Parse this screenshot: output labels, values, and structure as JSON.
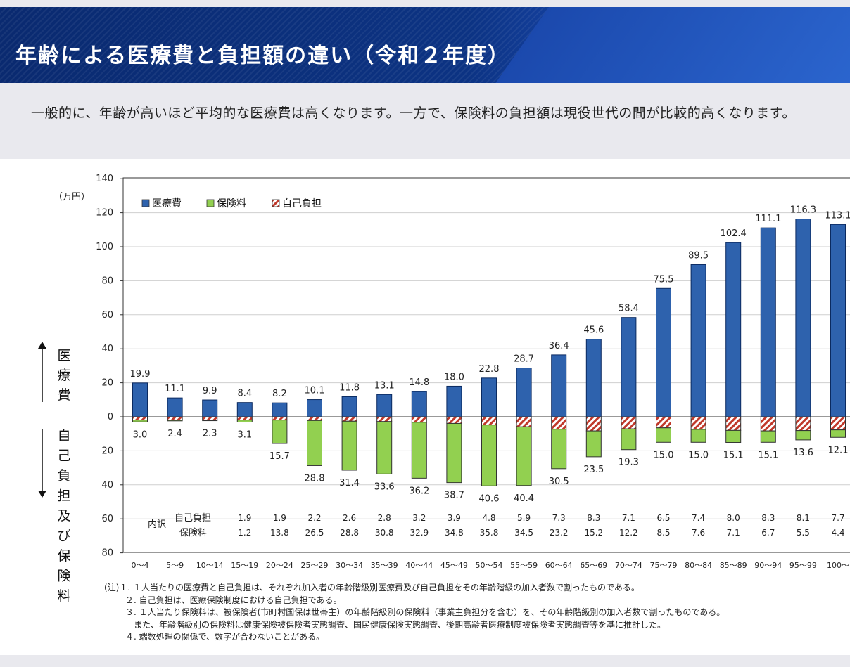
{
  "header": {
    "title": "年齢による医療費と負担額の違い（令和２年度）"
  },
  "intro": {
    "text": "一般的に、年齢が高いほど平均的な医療費は高くなります。一方で、保険料の負担額は現役世代の間が比較的高くなります。"
  },
  "chart_data": {
    "type": "bar",
    "unit_label": "（万円）",
    "categories": [
      "0〜4",
      "5〜9",
      "10〜14",
      "15〜19",
      "20〜24",
      "25〜29",
      "30〜34",
      "35〜39",
      "40〜44",
      "45〜49",
      "50〜54",
      "55〜59",
      "60〜64",
      "65〜69",
      "70〜74",
      "75〜79",
      "80〜84",
      "85〜89",
      "90〜94",
      "95〜99",
      "100〜"
    ],
    "upper_axis": {
      "label": "医療費",
      "ticks": [
        "140",
        "120",
        "100",
        "80",
        "60",
        "40",
        "20",
        "0"
      ],
      "range": [
        0,
        140
      ]
    },
    "lower_axis": {
      "label": "自己負担及び保険料",
      "ticks": [
        "20",
        "40",
        "60",
        "80"
      ],
      "range": [
        0,
        80
      ]
    },
    "legend": {
      "placement": "top-left",
      "items": [
        {
          "name": "医療費",
          "color": "#2e62ad"
        },
        {
          "name": "保険料",
          "color": "#92d050"
        },
        {
          "name": "自己負担",
          "color": "#c0392b"
        }
      ]
    },
    "series": [
      {
        "name": "医療費",
        "values": [
          19.9,
          11.1,
          9.9,
          8.4,
          8.2,
          10.1,
          11.8,
          13.1,
          14.8,
          18.0,
          22.8,
          28.7,
          36.4,
          45.6,
          58.4,
          75.5,
          89.5,
          102.4,
          111.1,
          116.3,
          113.1
        ],
        "labels": [
          "19.9",
          "11.1",
          "9.9",
          "8.4",
          "8.2",
          "10.1",
          "11.8",
          "13.1",
          "14.8",
          "18.0",
          "22.8",
          "28.7",
          "36.4",
          "45.6",
          "58.4",
          "75.5",
          "89.5",
          "102.4",
          "111.1",
          "116.3",
          "113.1"
        ]
      },
      {
        "name": "自己負担",
        "values": [
          1.9,
          1.9,
          1.9,
          1.9,
          1.9,
          2.2,
          2.6,
          2.8,
          3.2,
          3.9,
          4.8,
          5.9,
          7.3,
          8.3,
          7.1,
          6.5,
          7.4,
          8.0,
          8.3,
          8.1,
          7.7
        ]
      },
      {
        "name": "保険料",
        "values": [
          1.1,
          0.5,
          0.4,
          1.2,
          13.8,
          26.5,
          28.8,
          30.8,
          32.9,
          34.8,
          35.8,
          34.5,
          23.2,
          15.2,
          12.2,
          8.5,
          7.6,
          7.1,
          6.7,
          5.5,
          4.4
        ]
      }
    ],
    "lower_totals": [
      "3.0",
      "2.4",
      "2.3",
      "3.1",
      "15.7",
      "28.8",
      "31.4",
      "33.6",
      "36.2",
      "38.7",
      "40.6",
      "40.4",
      "30.5",
      "23.5",
      "19.3",
      "15.0",
      "15.0",
      "15.1",
      "15.1",
      "13.6",
      "12.1"
    ],
    "breakdown": {
      "title": "内訳",
      "row1_label": "自己負担",
      "row2_label": "保険料",
      "row1": [
        "",
        "",
        "",
        "1.9",
        "1.9",
        "2.2",
        "2.6",
        "2.8",
        "3.2",
        "3.9",
        "4.8",
        "5.9",
        "7.3",
        "8.3",
        "7.1",
        "6.5",
        "7.4",
        "8.0",
        "8.3",
        "8.1",
        "7.7"
      ],
      "row2": [
        "",
        "",
        "",
        "1.2",
        "13.8",
        "26.5",
        "28.8",
        "30.8",
        "32.9",
        "34.8",
        "35.8",
        "34.5",
        "23.2",
        "15.2",
        "12.2",
        "8.5",
        "7.6",
        "7.1",
        "6.7",
        "5.5",
        "4.4"
      ]
    }
  },
  "notes": [
    "(注)１. １人当たりの医療費と自己負担は、それぞれ加入者の年齢階級別医療費及び自己負担をその年齢階級の加入者数で割ったものである。",
    "２. 自己負担は、医療保険制度における自己負担である。",
    "３. １人当たり保険料は、被保険者(市町村国保は世帯主）の年齢階級別の保険料（事業主負担分を含む）を、その年齢階級別の加入者数で割ったものである。",
    "また、年齢階級別の保険料は健康保険被保険者実態調査、国民健康保険実態調査、後期高齢者医療制度被保険者実態調査等を基に推計した。",
    "４. 端数処理の関係で、数字が合わないことがある。"
  ]
}
